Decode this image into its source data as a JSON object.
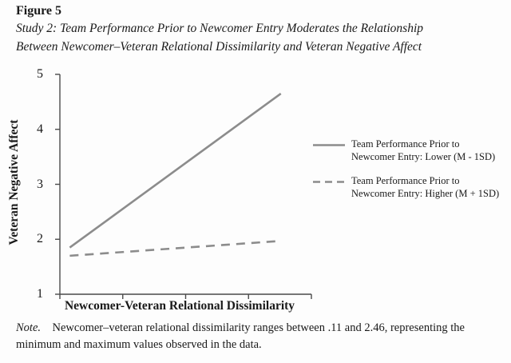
{
  "figure": {
    "label": "Figure 5",
    "caption": [
      "Study 2: Team Performance Prior to Newcomer Entry Moderates the Relationship",
      "Between Newcomer–Veteran Relational Dissimilarity and Veteran Negative Affect"
    ]
  },
  "chart_data": {
    "type": "line",
    "title": "",
    "xlabel": "Newcomer-Veteran Relational Dissimilarity",
    "ylabel": "Veteran Negative Affect",
    "ylim": [
      1,
      5
    ],
    "yticks": [
      1,
      2,
      3,
      4,
      5
    ],
    "xlim": [
      0,
      2.8
    ],
    "x_observed_range": [
      0.11,
      2.46
    ],
    "grid": false,
    "legend_position": "right",
    "line_color": "#8c8c8c",
    "series": [
      {
        "name": "Team Performance Prior to Newcomer Entry: Lower (M - 1SD)",
        "style": "solid",
        "x": [
          0.11,
          2.46
        ],
        "values": [
          1.85,
          4.65
        ]
      },
      {
        "name": "Team Performance Prior to Newcomer Entry: Higher (M + 1SD)",
        "style": "dashed",
        "x": [
          0.11,
          2.46
        ],
        "values": [
          1.7,
          1.97
        ]
      }
    ]
  },
  "legend": {
    "items": [
      {
        "style": "solid",
        "lines": [
          "Team Performance Prior to",
          "Newcomer Entry: Lower (M - 1SD)"
        ]
      },
      {
        "style": "dashed",
        "lines": [
          "Team Performance Prior to",
          "Newcomer Entry: Higher (M + 1SD)"
        ]
      }
    ]
  },
  "note": {
    "prefix": "Note.",
    "text": "Newcomer–veteran relational dissimilarity ranges between .11 and 2.46, representing the minimum and maximum values observed in the data."
  }
}
